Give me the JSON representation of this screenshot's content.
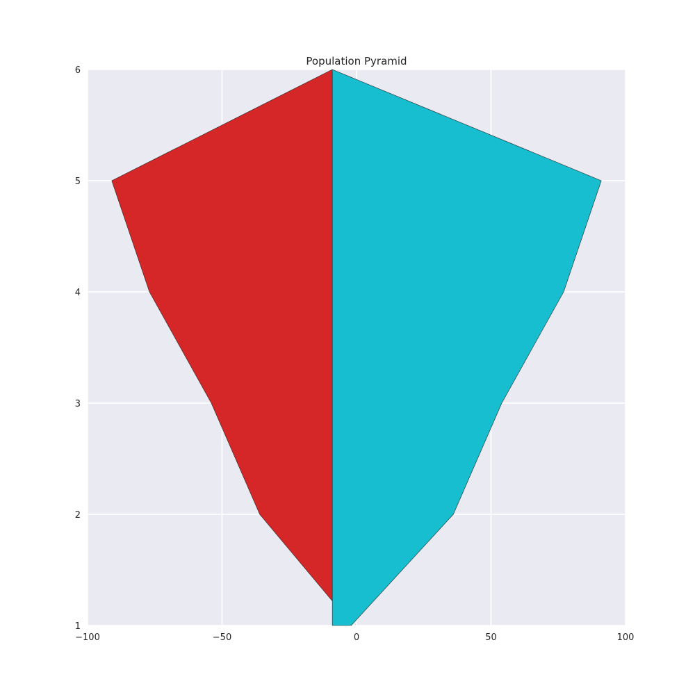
{
  "chart_data": {
    "type": "area",
    "title": "Population Pyramid",
    "xlabel": "",
    "ylabel": "",
    "xlim": [
      -100,
      100
    ],
    "ylim": [
      1,
      6
    ],
    "x_ticks": [
      "−100",
      "−50",
      "0",
      "50",
      "100"
    ],
    "y_ticks": [
      "1",
      "2",
      "3",
      "4",
      "5",
      "6"
    ],
    "grid": true,
    "background_color": "#eaeaf2",
    "series": [
      {
        "side": "left",
        "color": "#d62728",
        "points": [
          {
            "x": -9,
            "y": 6
          },
          {
            "x": -91,
            "y": 5
          },
          {
            "x": -77,
            "y": 4
          },
          {
            "x": -54,
            "y": 3
          },
          {
            "x": -36,
            "y": 2
          },
          {
            "x": -9,
            "y": 1.22
          }
        ]
      },
      {
        "side": "right",
        "color": "#17becf",
        "points": [
          {
            "x": -9,
            "y": 6
          },
          {
            "x": 91,
            "y": 5
          },
          {
            "x": 77,
            "y": 4
          },
          {
            "x": 54,
            "y": 3
          },
          {
            "x": 36,
            "y": 2
          },
          {
            "x": -2,
            "y": 1
          }
        ]
      }
    ],
    "baseline_x": -9
  }
}
